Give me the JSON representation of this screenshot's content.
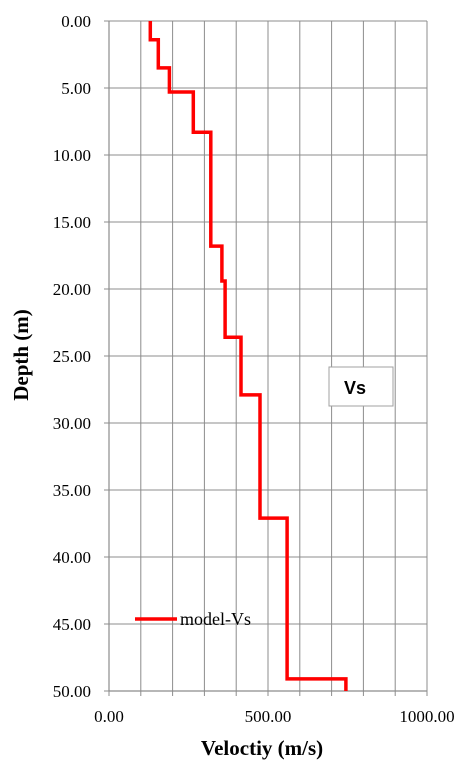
{
  "chart_data": {
    "type": "line",
    "xlabel": "Veloctiy (m/s)",
    "ylabel": "Depth (m)",
    "xlim": [
      0,
      1000
    ],
    "ylim": [
      0,
      50
    ],
    "y_inverted": true,
    "x_axis_position": "bottom",
    "x_ticks": [
      0,
      100,
      200,
      300,
      400,
      500,
      600,
      700,
      800,
      900,
      1000
    ],
    "x_tick_labels": [
      "0.00",
      "500.00",
      "1000.00"
    ],
    "x_tick_label_values": [
      0,
      500,
      1000
    ],
    "y_ticks": [
      0,
      5,
      10,
      15,
      20,
      25,
      30,
      35,
      40,
      45,
      50
    ],
    "y_tick_labels": [
      "0.00",
      "5.00",
      "10.00",
      "15.00",
      "20.00",
      "25.00",
      "30.00",
      "35.00",
      "40.00",
      "45.00",
      "50.00"
    ],
    "grid": true,
    "legend_placement": "bottom-left",
    "series": [
      {
        "name": "model-Vs",
        "color": "#ff0000",
        "x": [
          130,
          130,
          155,
          155,
          190,
          190,
          265,
          265,
          320,
          320,
          355,
          355,
          365,
          365,
          415,
          415,
          475,
          475,
          560,
          560,
          745,
          745
        ],
        "y": [
          0,
          1.4,
          1.4,
          3.5,
          3.5,
          5.3,
          5.3,
          8.3,
          8.3,
          16.8,
          16.8,
          19.4,
          19.4,
          23.6,
          23.6,
          27.9,
          27.9,
          37.1,
          37.1,
          49.1,
          49.1,
          50
        ]
      }
    ],
    "annotations": [
      {
        "text": "Vs",
        "position": "right-middle"
      }
    ]
  }
}
